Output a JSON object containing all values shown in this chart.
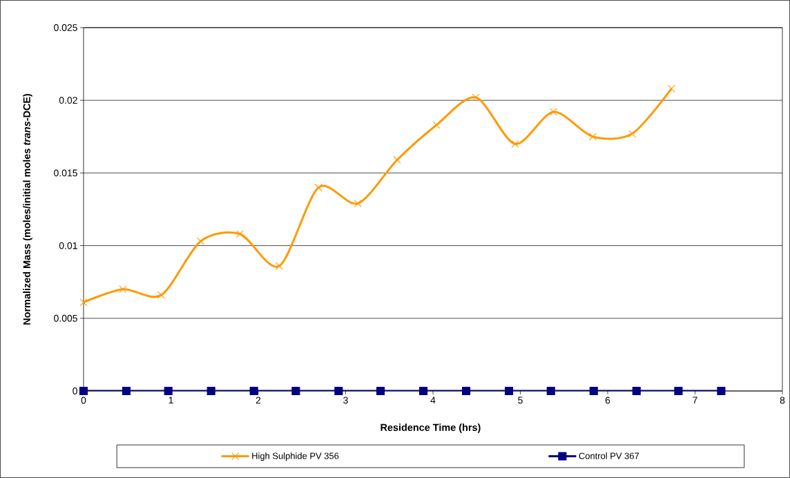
{
  "chart_data": {
    "type": "line",
    "xlabel": "Residence Time (hrs)",
    "ylabel": "Normalized Mass (moles/initial moles *trans*-DCE)",
    "xlim": [
      0,
      8
    ],
    "ylim": [
      0,
      0.025
    ],
    "xticks": [
      0,
      1,
      2,
      3,
      4,
      5,
      6,
      7,
      8
    ],
    "yticks": [
      0,
      0.005,
      0.01,
      0.015,
      0.02,
      0.025
    ],
    "grid": "y",
    "legend": "bottom",
    "series": [
      {
        "name": "High Sulphide PV 356",
        "color": "#ff9900",
        "marker": "cross",
        "x": [
          0,
          0.45,
          0.89,
          1.34,
          1.79,
          2.24,
          2.69,
          3.14,
          3.59,
          4.04,
          4.49,
          4.94,
          5.38,
          5.83,
          6.28,
          6.73
        ],
        "values": [
          0.0061,
          0.007,
          0.0066,
          0.0103,
          0.0108,
          0.0086,
          0.014,
          0.0129,
          0.0159,
          0.0183,
          0.0202,
          0.017,
          0.0192,
          0.0175,
          0.0177,
          0.0208
        ]
      },
      {
        "name": "Control PV 367",
        "color": "#000080",
        "marker": "square",
        "x": [
          0,
          0.49,
          0.97,
          1.46,
          1.95,
          2.43,
          2.92,
          3.4,
          3.89,
          4.38,
          4.87,
          5.35,
          5.84,
          6.33,
          6.81,
          7.3
        ],
        "values": [
          0,
          0,
          0,
          0,
          0,
          0,
          0,
          0,
          0,
          0,
          0,
          0,
          0,
          0,
          0,
          0
        ]
      }
    ]
  }
}
